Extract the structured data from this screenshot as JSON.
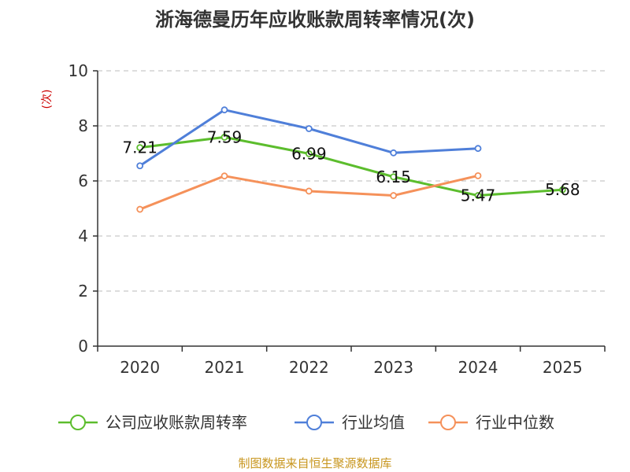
{
  "chart_data": {
    "type": "line",
    "title": "浙海德曼历年应收账款周转率情况(次)",
    "xlabel": "",
    "ylabel": "(次)",
    "categories": [
      "2020",
      "2021",
      "2022",
      "2023",
      "2024",
      "2025"
    ],
    "ylim": [
      0,
      10
    ],
    "yticks": [
      0,
      2,
      4,
      6,
      8,
      10
    ],
    "grid": true,
    "legend_position": "bottom",
    "series": [
      {
        "name": "公司应收账款周转率",
        "color": "#5cbd2d",
        "values": [
          7.21,
          7.59,
          6.99,
          6.15,
          5.47,
          5.68
        ],
        "labels": [
          "7.21",
          "7.59",
          "6.99",
          "6.15",
          "5.47",
          "5.68"
        ]
      },
      {
        "name": "行业均值",
        "color": "#4f7fd9",
        "values": [
          6.55,
          8.58,
          7.9,
          7.02,
          7.18,
          null
        ]
      },
      {
        "name": "行业中位数",
        "color": "#f5915a",
        "values": [
          4.97,
          6.18,
          5.63,
          5.47,
          6.19,
          null
        ]
      }
    ],
    "source": "制图数据来自恒生聚源数据库"
  }
}
